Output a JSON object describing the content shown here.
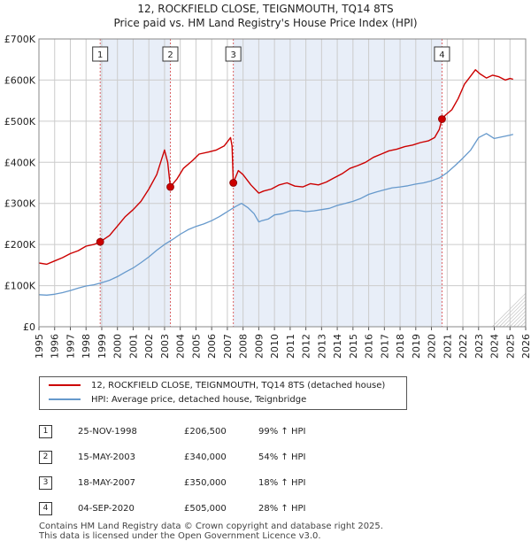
{
  "title": "12, ROCKFIELD CLOSE, TEIGNMOUTH, TQ14 8TS",
  "subtitle": "Price paid vs. HM Land Registry's House Price Index (HPI)",
  "colors": {
    "property": "#cc0000",
    "hpi": "#6699cc",
    "shade": "#e8eef8",
    "grid": "#cccccc"
  },
  "chart_data": {
    "type": "line",
    "title": "12, ROCKFIELD CLOSE, TEIGNMOUTH, TQ14 8TS",
    "subtitle": "Price paid vs. HM Land Registry's House Price Index (HPI)",
    "xlim": [
      1995,
      2026
    ],
    "ylim": [
      0,
      700000
    ],
    "x_ticks": [
      "1995",
      "1996",
      "1997",
      "1998",
      "1999",
      "2000",
      "2001",
      "2002",
      "2003",
      "2004",
      "2005",
      "2006",
      "2007",
      "2008",
      "2009",
      "2010",
      "2011",
      "2012",
      "2013",
      "2014",
      "2015",
      "2016",
      "2017",
      "2018",
      "2019",
      "2020",
      "2021",
      "2022",
      "2023",
      "2024",
      "2025",
      "2026"
    ],
    "y_ticks": [
      {
        "value": 0,
        "label": "£0"
      },
      {
        "value": 100000,
        "label": "£100K"
      },
      {
        "value": 200000,
        "label": "£200K"
      },
      {
        "value": 300000,
        "label": "£300K"
      },
      {
        "value": 400000,
        "label": "£400K"
      },
      {
        "value": 500000,
        "label": "£500K"
      },
      {
        "value": 600000,
        "label": "£600K"
      },
      {
        "value": 700000,
        "label": "£700K"
      }
    ],
    "shaded_ranges": [
      [
        1998.9,
        2003.37
      ],
      [
        2007.38,
        2020.67
      ],
      [
        2025.0,
        2026.0
      ]
    ],
    "series": [
      {
        "name": "12, ROCKFIELD CLOSE, TEIGNMOUTH, TQ14 8TS (detached house)",
        "color": "#cc0000",
        "x": [
          1995.0,
          1995.5,
          1996.0,
          1996.5,
          1997.0,
          1997.5,
          1998.0,
          1998.5,
          1998.9,
          1999.5,
          2000.0,
          2000.5,
          2001.0,
          2001.5,
          2002.0,
          2002.5,
          2003.0,
          2003.2,
          2003.37,
          2003.8,
          2004.2,
          2004.8,
          2005.2,
          2005.8,
          2006.3,
          2006.8,
          2007.2,
          2007.3,
          2007.38,
          2007.7,
          2008.0,
          2008.5,
          2009.0,
          2009.3,
          2009.8,
          2010.3,
          2010.8,
          2011.3,
          2011.8,
          2012.3,
          2012.8,
          2013.3,
          2013.8,
          2014.3,
          2014.8,
          2015.3,
          2015.8,
          2016.3,
          2016.8,
          2017.3,
          2017.8,
          2018.3,
          2018.8,
          2019.3,
          2019.8,
          2020.2,
          2020.5,
          2020.67,
          2020.9,
          2021.3,
          2021.7,
          2022.1,
          2022.5,
          2022.8,
          2023.1,
          2023.5,
          2023.9,
          2024.3,
          2024.7,
          2025.0,
          2025.2
        ],
        "values": [
          155000,
          152000,
          160000,
          168000,
          178000,
          185000,
          196000,
          200000,
          206500,
          222000,
          245000,
          268000,
          285000,
          305000,
          335000,
          370000,
          430000,
          400000,
          340000,
          360000,
          385000,
          405000,
          420000,
          425000,
          430000,
          440000,
          460000,
          440000,
          350000,
          380000,
          370000,
          345000,
          325000,
          330000,
          335000,
          345000,
          350000,
          342000,
          340000,
          348000,
          345000,
          352000,
          362000,
          372000,
          385000,
          392000,
          400000,
          412000,
          420000,
          428000,
          432000,
          438000,
          442000,
          448000,
          452000,
          460000,
          480000,
          505000,
          515000,
          528000,
          555000,
          590000,
          610000,
          625000,
          615000,
          605000,
          612000,
          608000,
          600000,
          604000,
          602000
        ]
      },
      {
        "name": "HPI: Average price, detached house, Teignbridge",
        "color": "#6699cc",
        "x": [
          1995.0,
          1995.5,
          1996.0,
          1996.5,
          1997.0,
          1997.5,
          1998.0,
          1998.5,
          1999.0,
          1999.5,
          2000.0,
          2000.5,
          2001.0,
          2001.5,
          2002.0,
          2002.5,
          2003.0,
          2003.5,
          2004.0,
          2004.5,
          2005.0,
          2005.5,
          2006.0,
          2006.5,
          2007.0,
          2007.5,
          2007.9,
          2008.3,
          2008.7,
          2009.0,
          2009.2,
          2009.6,
          2010.0,
          2010.5,
          2011.0,
          2011.5,
          2012.0,
          2012.5,
          2013.0,
          2013.5,
          2014.0,
          2014.5,
          2015.0,
          2015.5,
          2016.0,
          2016.5,
          2017.0,
          2017.5,
          2018.0,
          2018.5,
          2019.0,
          2019.5,
          2020.0,
          2020.5,
          2021.0,
          2021.5,
          2022.0,
          2022.5,
          2023.0,
          2023.5,
          2024.0,
          2024.5,
          2025.0,
          2025.2
        ],
        "values": [
          78000,
          77000,
          79000,
          83000,
          88000,
          94000,
          99000,
          102000,
          107000,
          113000,
          122000,
          133000,
          143000,
          156000,
          170000,
          186000,
          200000,
          212000,
          225000,
          236000,
          244000,
          250000,
          258000,
          268000,
          280000,
          292000,
          300000,
          290000,
          275000,
          255000,
          258000,
          262000,
          272000,
          275000,
          282000,
          283000,
          280000,
          282000,
          285000,
          288000,
          295000,
          300000,
          305000,
          312000,
          322000,
          328000,
          333000,
          338000,
          340000,
          343000,
          347000,
          350000,
          355000,
          362000,
          375000,
          392000,
          410000,
          430000,
          460000,
          470000,
          458000,
          462000,
          466000,
          468000
        ]
      }
    ],
    "sales": [
      {
        "id": "1",
        "x": 1998.9,
        "value": 206500
      },
      {
        "id": "2",
        "x": 2003.37,
        "value": 340000
      },
      {
        "id": "3",
        "x": 2007.38,
        "value": 350000
      },
      {
        "id": "4",
        "x": 2020.67,
        "value": 505000
      }
    ]
  },
  "legend": {
    "property_label": "12, ROCKFIELD CLOSE, TEIGNMOUTH, TQ14 8TS (detached house)",
    "hpi_label": "HPI: Average price, detached house, Teignbridge"
  },
  "transactions": [
    {
      "num": "1",
      "date": "25-NOV-1998",
      "price": "£206,500",
      "hpi": "99% ↑ HPI"
    },
    {
      "num": "2",
      "date": "15-MAY-2003",
      "price": "£340,000",
      "hpi": "54% ↑ HPI"
    },
    {
      "num": "3",
      "date": "18-MAY-2007",
      "price": "£350,000",
      "hpi": "18% ↑ HPI"
    },
    {
      "num": "4",
      "date": "04-SEP-2020",
      "price": "£505,000",
      "hpi": "28% ↑ HPI"
    }
  ],
  "footer": {
    "line1": "Contains HM Land Registry data © Crown copyright and database right 2025.",
    "line2": "This data is licensed under the Open Government Licence v3.0."
  }
}
